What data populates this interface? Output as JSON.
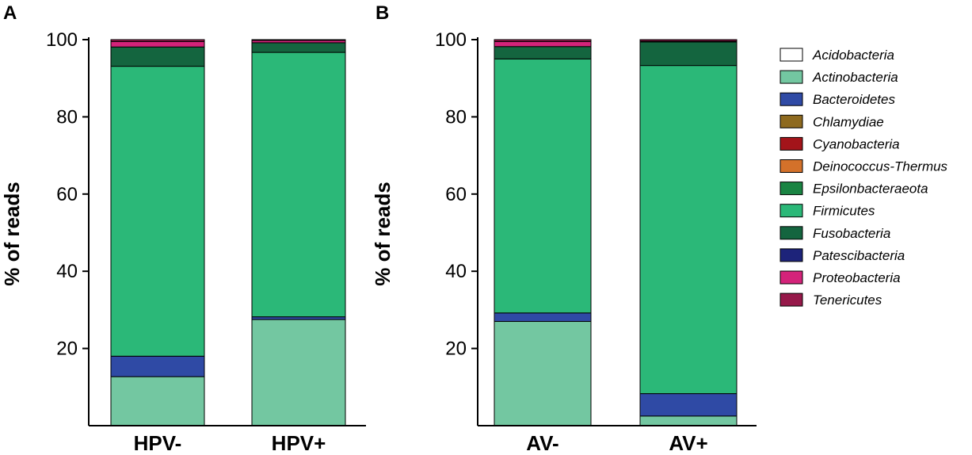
{
  "chart_data": [
    {
      "type": "bar",
      "stacked": true,
      "panel": "A",
      "categories": [
        "HPV-",
        "HPV+"
      ],
      "ylabel": "% of reads",
      "xlabel": "",
      "ylim": [
        0,
        100
      ],
      "yticks": [
        20,
        40,
        60,
        80,
        100
      ],
      "series": [
        {
          "name": "Actinobacteria",
          "values": [
            12.7,
            27.5
          ]
        },
        {
          "name": "Bacteroidetes",
          "values": [
            5.3,
            0.7
          ]
        },
        {
          "name": "Firmicutes",
          "values": [
            75.1,
            68.5
          ]
        },
        {
          "name": "Fusobacteria",
          "values": [
            5.0,
            2.5
          ]
        },
        {
          "name": "Proteobacteria",
          "values": [
            1.4,
            0.6
          ]
        },
        {
          "name": "Tenericutes",
          "values": [
            0.5,
            0.2
          ]
        }
      ]
    },
    {
      "type": "bar",
      "stacked": true,
      "panel": "B",
      "categories": [
        "AV-",
        "AV+"
      ],
      "ylabel": "% of reads",
      "xlabel": "",
      "ylim": [
        0,
        100
      ],
      "yticks": [
        20,
        40,
        60,
        80,
        100
      ],
      "series": [
        {
          "name": "Actinobacteria",
          "values": [
            27.0,
            2.5
          ]
        },
        {
          "name": "Bacteroidetes",
          "values": [
            2.2,
            5.8
          ]
        },
        {
          "name": "Firmicutes",
          "values": [
            65.8,
            85.0
          ]
        },
        {
          "name": "Fusobacteria",
          "values": [
            3.2,
            6.1
          ]
        },
        {
          "name": "Proteobacteria",
          "values": [
            1.3,
            0.2
          ]
        },
        {
          "name": "Tenericutes",
          "values": [
            0.5,
            0.4
          ]
        }
      ]
    }
  ],
  "legend": {
    "placement": "right",
    "items": [
      {
        "label": "Acidobacteria",
        "color": "#ffffff"
      },
      {
        "label": "Actinobacteria",
        "color": "#73c7a1"
      },
      {
        "label": "Bacteroidetes",
        "color": "#2f4aa5"
      },
      {
        "label": "Chlamydiae",
        "color": "#8e6a1f"
      },
      {
        "label": "Cyanobacteria",
        "color": "#a3141a"
      },
      {
        "label": "Deinococcus-Thermus",
        "color": "#d3712a"
      },
      {
        "label": "Epsilonbacteraeota",
        "color": "#1a8443"
      },
      {
        "label": "Firmicutes",
        "color": "#2bb878"
      },
      {
        "label": "Fusobacteria",
        "color": "#14653f"
      },
      {
        "label": "Patescibacteria",
        "color": "#1d237a"
      },
      {
        "label": "Proteobacteria",
        "color": "#d4237a"
      },
      {
        "label": "Tenericutes",
        "color": "#96194a"
      }
    ]
  },
  "colors": {
    "Actinobacteria": "#73c7a1",
    "Bacteroidetes": "#2f4aa5",
    "Firmicutes": "#2bb878",
    "Fusobacteria": "#14653f",
    "Proteobacteria": "#d4237a",
    "Tenericutes": "#96194a"
  }
}
